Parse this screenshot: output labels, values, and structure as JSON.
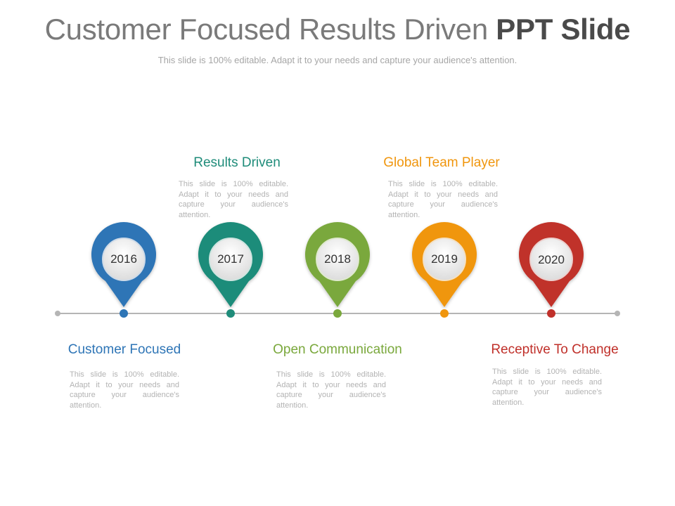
{
  "slide": {
    "title_regular": "Customer Focused Results Driven",
    "title_bold": "PPT Slide",
    "subtitle": "This slide is 100% editable. Adapt it to your needs and capture your audience's attention."
  },
  "milestones": [
    {
      "year": "2016",
      "heading": "Customer Focused",
      "body": "This slide is 100% editable. Adapt it to your needs and capture your audience's attention.",
      "color": "#2e75b6"
    },
    {
      "year": "2017",
      "heading": "Results Driven",
      "body": "This slide is 100% editable. Adapt it to your needs and capture your audience's attention.",
      "color": "#1f8c7a"
    },
    {
      "year": "2018",
      "heading": "Open Communication",
      "body": "This slide is 100% editable. Adapt it to your needs and capture your audience's attention.",
      "color": "#7aa83c"
    },
    {
      "year": "2019",
      "heading": "Global Team Player",
      "body": "This slide is 100% editable. Adapt it to your needs and capture your audience's attention.",
      "color": "#f0960e"
    },
    {
      "year": "2020",
      "heading": "Receptive To Change",
      "body": "This slide is 100% editable. Adapt it to your needs and capture your audience's attention.",
      "color": "#c0302a"
    }
  ]
}
